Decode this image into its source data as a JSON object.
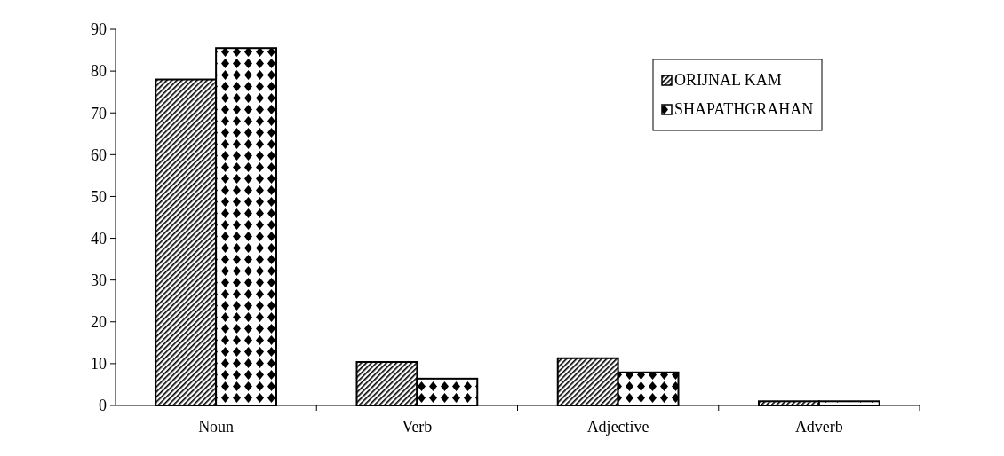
{
  "chart_data": {
    "type": "bar",
    "categories": [
      "Noun",
      "Verb",
      "Adjective",
      "Adverb"
    ],
    "series": [
      {
        "name": "ORIJNAL KAM",
        "color": "#000000",
        "values": [
          78,
          10.4,
          11.3,
          1
        ]
      },
      {
        "name": "SHAPATHGRAHAN",
        "color": "#000000",
        "values": [
          85.5,
          6.4,
          7.9,
          1
        ]
      }
    ],
    "ylim": [
      0,
      90
    ],
    "yticks": [
      0,
      10,
      20,
      30,
      40,
      50,
      60,
      70,
      80,
      90
    ],
    "grid": false,
    "legend": "top right"
  }
}
